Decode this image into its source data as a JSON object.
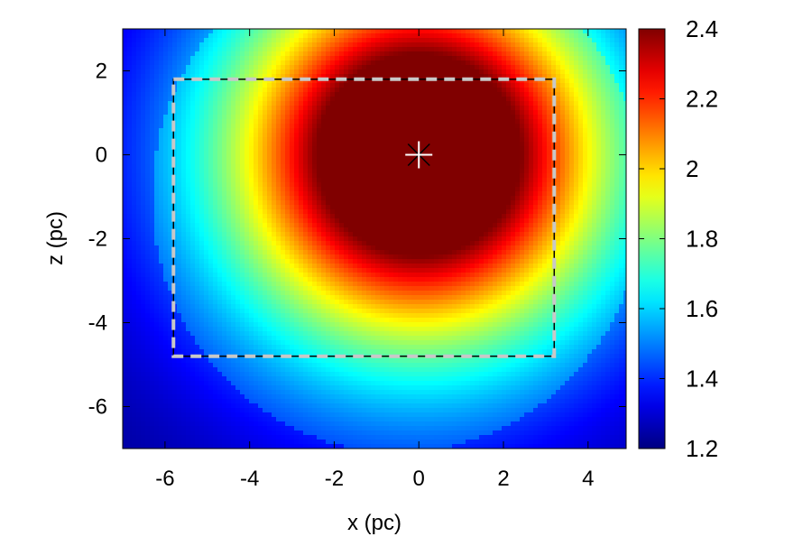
{
  "chart_data": {
    "type": "heatmap",
    "title": "",
    "xlabel": "x (pc)",
    "ylabel": "z (pc)",
    "xlim": [
      -7,
      4.9
    ],
    "ylim": [
      -7,
      3
    ],
    "x_ticks": [
      {
        "value": -6,
        "label": "-6"
      },
      {
        "value": -4,
        "label": "-4"
      },
      {
        "value": -2,
        "label": "-2"
      },
      {
        "value": 0,
        "label": "0"
      },
      {
        "value": 2,
        "label": "2"
      },
      {
        "value": 4,
        "label": "4"
      }
    ],
    "y_ticks": [
      {
        "value": 2,
        "label": "2"
      },
      {
        "value": 0,
        "label": "0"
      },
      {
        "value": -2,
        "label": "-2"
      },
      {
        "value": -4,
        "label": "-4"
      },
      {
        "value": -6,
        "label": "-6"
      }
    ],
    "colorbar": {
      "range": [
        1.2,
        2.4
      ],
      "colormap": "jet",
      "ticks": [
        {
          "value": 2.4,
          "label": "2.4"
        },
        {
          "value": 2.2,
          "label": "2.2"
        },
        {
          "value": 2.0,
          "label": "2"
        },
        {
          "value": 1.8,
          "label": "1.8"
        },
        {
          "value": 1.6,
          "label": "1.6"
        },
        {
          "value": 1.4,
          "label": "1.4"
        },
        {
          "value": 1.2,
          "label": "1.2"
        }
      ]
    },
    "field": {
      "peak_center": {
        "x": 0.0,
        "z": 0.0
      },
      "max_value": 2.4,
      "saturated_radius_pc": 2.1,
      "edge_value_min": 1.2,
      "enhanced_region_center": {
        "x": -0.5,
        "z": -1.0
      },
      "enhanced_region_radius_pc": 5.8
    },
    "annotations": {
      "star_marker": {
        "x": 0.0,
        "z": 0.0
      },
      "dashed_box": {
        "x_min": -5.8,
        "x_max": 3.2,
        "z_min": -4.8,
        "z_max": 1.8
      }
    }
  }
}
